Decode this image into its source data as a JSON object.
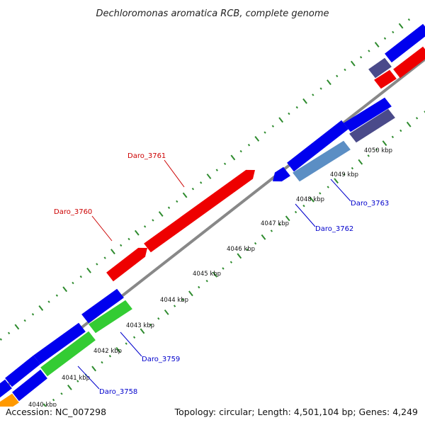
{
  "title": "Dechloromonas aromatica RCB, complete genome",
  "footer": {
    "accession": "Accession: NC_007298",
    "summary": "Topology: circular; Length: 4,501,104 bp; Genes: 4,249"
  },
  "ticks": [
    "4040 kbp",
    "4041 kbp",
    "4042 kbp",
    "4043 kbp",
    "4044 kbp",
    "4045 kbp",
    "4046 kbp",
    "4047 kbp",
    "4048 kbp",
    "4049 kbp",
    "4050 kbp"
  ],
  "gene_labels": {
    "forward": [
      "Daro_3760",
      "Daro_3761"
    ],
    "reverse": [
      "Daro_3758",
      "Daro_3759",
      "Daro_3762",
      "Daro_3763"
    ]
  },
  "colors": {
    "label_forward": "#cc0000",
    "label_reverse": "#0000cc",
    "backbone": "#888888",
    "cds_blue": "#0000ee",
    "cds_red": "#ee0000",
    "cds_green": "#33cc33",
    "cds_navy": "#4a4a8a",
    "cds_steel": "#5b8ec4",
    "cds_orange": "#ff9900",
    "dots": "#2e8b2e"
  }
}
